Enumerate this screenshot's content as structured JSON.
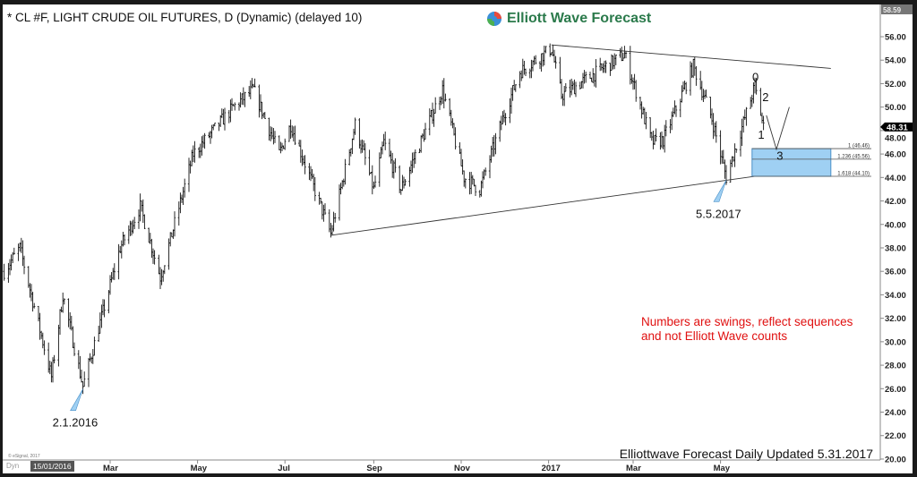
{
  "header": {
    "title": "* CL #F, LIGHT CRUDE OIL FUTURES, D (Dynamic) (delayed 10)",
    "logo_text": "Elliott Wave Forecast"
  },
  "note": {
    "line1": "Numbers are swings, reflect sequences",
    "line2": "and not Elliott Wave counts"
  },
  "footer": {
    "text": "Elliottwave Forecast Daily Updated 5.31.2017",
    "copyright": "© eSignal, 2017",
    "dyn": "Dyn",
    "start_date": "15/01/2016"
  },
  "colors": {
    "accent_box": "#9fd0f3",
    "note": "#e01010",
    "logo": "#2b7a4b",
    "price_tag": "#000000"
  },
  "chart_data": {
    "type": "ohlc",
    "y_ticks": [
      "56.00",
      "54.00",
      "52.00",
      "50.00",
      "48.00",
      "46.00",
      "44.00",
      "42.00",
      "40.00",
      "38.00",
      "36.00",
      "34.00",
      "32.00",
      "30.00",
      "28.00",
      "26.00",
      "24.00",
      "22.00",
      "20.00"
    ],
    "ylim": [
      20,
      58.59
    ],
    "top_label": "58.59",
    "last_price": "48.31",
    "x_ticks": [
      "Mar",
      "May",
      "Jul",
      "Sep",
      "Nov",
      "2017",
      "Mar",
      "May"
    ],
    "x_tick_dates": [
      "2016-03-01",
      "2016-05-01",
      "2016-07-01",
      "2016-09-01",
      "2016-11-01",
      "2017-01-01",
      "2017-03-01",
      "2017-05-01"
    ],
    "price_path": [
      [
        "2015-12-18",
        36
      ],
      [
        "2015-12-29",
        38
      ],
      [
        "2016-01-08",
        33
      ],
      [
        "2016-01-20",
        27
      ],
      [
        "2016-01-28",
        34
      ],
      [
        "2016-02-11",
        26.2
      ],
      [
        "2016-03-08",
        38
      ],
      [
        "2016-03-22",
        41.5
      ],
      [
        "2016-04-05",
        35.5
      ],
      [
        "2016-04-28",
        46
      ],
      [
        "2016-05-26",
        50
      ],
      [
        "2016-06-09",
        51.5
      ],
      [
        "2016-06-27",
        46
      ],
      [
        "2016-07-05",
        48.5
      ],
      [
        "2016-08-02",
        39.2
      ],
      [
        "2016-08-19",
        48.5
      ],
      [
        "2016-09-01",
        43
      ],
      [
        "2016-09-08",
        47
      ],
      [
        "2016-09-20",
        43
      ],
      [
        "2016-10-19",
        51.5
      ],
      [
        "2016-11-03",
        44
      ],
      [
        "2016-11-14",
        43
      ],
      [
        "2016-11-30",
        49
      ],
      [
        "2016-12-12",
        53
      ],
      [
        "2017-01-03",
        55
      ],
      [
        "2017-01-10",
        51
      ],
      [
        "2017-02-23",
        54.5
      ],
      [
        "2017-03-14",
        47
      ],
      [
        "2017-03-22",
        47.2
      ],
      [
        "2017-04-12",
        53.5
      ],
      [
        "2017-04-25",
        49
      ],
      [
        "2017-05-05",
        44
      ],
      [
        "2017-05-25",
        51.8
      ],
      [
        "2017-05-31",
        48.3
      ]
    ],
    "trendlines": [
      {
        "from": [
          "2017-01-03",
          55.3
        ],
        "to": [
          "2017-07-17",
          53.3
        ]
      },
      {
        "from": [
          "2016-08-02",
          39.07
        ],
        "to": [
          "2017-07-17",
          45.0
        ]
      }
    ],
    "fib_levels": [
      {
        "ratio": "1",
        "value": 46.46,
        "label": "1 (46.46)"
      },
      {
        "ratio": "1.236",
        "value": 45.56,
        "label": "1.236 (45.56)"
      },
      {
        "ratio": "1.618",
        "value": 44.1,
        "label": "1.618 (44.10)"
      }
    ],
    "swing_labels": [
      {
        "text": "0",
        "date": "2017-05-25",
        "price": 52.6
      },
      {
        "text": "2",
        "date": "2017-06-01",
        "price": 50.9
      },
      {
        "text": "1",
        "date": "2017-05-29",
        "price": 47.7
      },
      {
        "text": "3",
        "date": "2017-06-11",
        "price": 45.9
      }
    ],
    "annotations": [
      {
        "text": "2.1.2016",
        "date": "2016-02-11",
        "price": 26.2
      },
      {
        "text": "5.5.2017",
        "date": "2017-05-05",
        "price": 44
      }
    ]
  }
}
